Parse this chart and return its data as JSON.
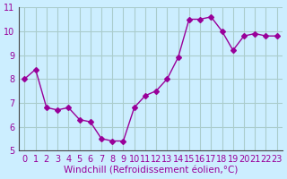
{
  "x": [
    0,
    1,
    2,
    3,
    4,
    5,
    6,
    7,
    8,
    9,
    10,
    11,
    12,
    13,
    14,
    15,
    16,
    17,
    18,
    19,
    20,
    21,
    22,
    23
  ],
  "y": [
    8.0,
    8.4,
    6.8,
    6.7,
    6.8,
    6.3,
    6.2,
    5.5,
    5.4,
    5.4,
    6.8,
    7.3,
    7.5,
    8.0,
    8.9,
    10.5,
    10.5,
    10.6,
    10.0,
    9.2,
    9.8,
    9.9,
    9.8,
    9.8
  ],
  "line_color": "#990099",
  "marker": "D",
  "marker_size": 3,
  "bg_color": "#cceeff",
  "grid_color": "#aacccc",
  "xlabel": "Windchill (Refroidissement éolien,°C)",
  "ylabel": "",
  "xlim": [
    -0.5,
    23.5
  ],
  "ylim": [
    5,
    11
  ],
  "yticks": [
    5,
    6,
    7,
    8,
    9,
    10,
    11
  ],
  "xticks": [
    0,
    1,
    2,
    3,
    4,
    5,
    6,
    7,
    8,
    9,
    10,
    11,
    12,
    13,
    14,
    15,
    16,
    17,
    18,
    19,
    20,
    21,
    22,
    23
  ],
  "title": "",
  "xlabel_fontsize": 7.5,
  "tick_fontsize": 7,
  "label_color": "#990099",
  "spine_color": "#555555"
}
